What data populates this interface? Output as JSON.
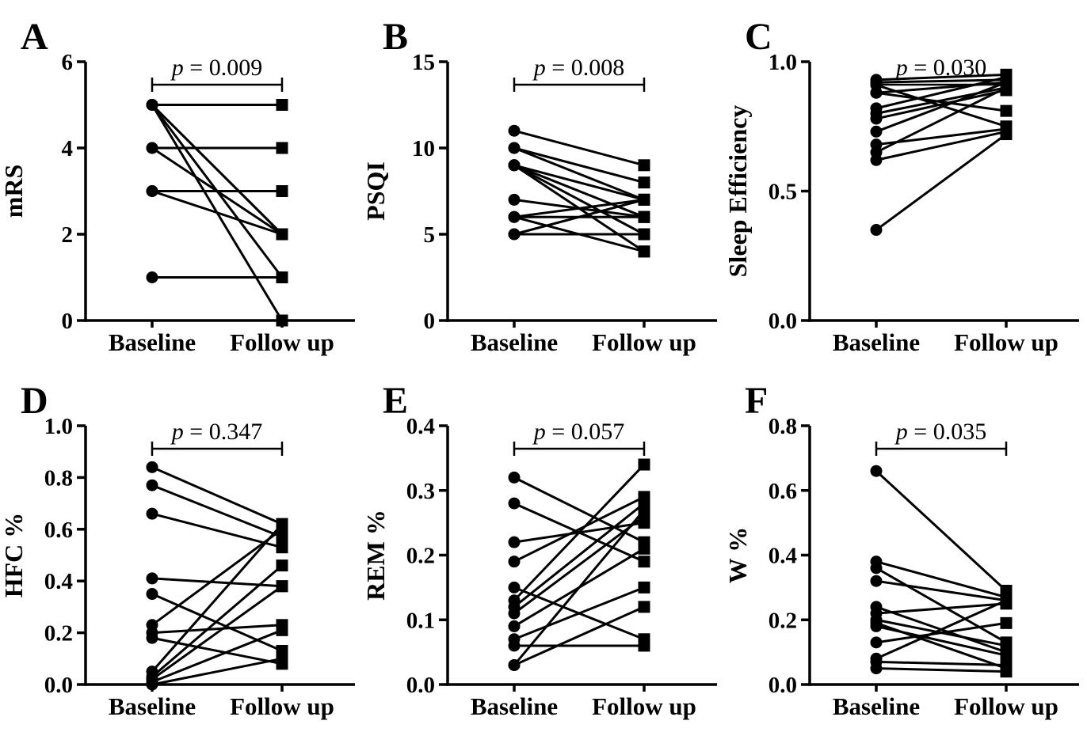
{
  "figure": {
    "background": "#ffffff",
    "ink": "#000000",
    "marker_legend": {
      "baseline_marker": "filled-circle",
      "followup_marker": "filled-square"
    }
  },
  "chart_data": [
    {
      "panel": "A",
      "type": "line",
      "subtype": "paired-before-after",
      "title": "",
      "ylabel": "mRS",
      "categories": [
        "Baseline",
        "Follow up"
      ],
      "ylim": [
        0,
        6
      ],
      "yticks": [
        0,
        2,
        4,
        6
      ],
      "ytick_labels": [
        "0",
        "2",
        "4",
        "6"
      ],
      "p_label": "p = 0.009",
      "grid": "off",
      "pairs": [
        [
          5,
          5
        ],
        [
          5,
          2
        ],
        [
          5,
          2
        ],
        [
          5,
          1
        ],
        [
          5,
          0
        ],
        [
          4,
          4
        ],
        [
          4,
          2
        ],
        [
          3,
          3
        ],
        [
          3,
          2
        ],
        [
          1,
          1
        ]
      ]
    },
    {
      "panel": "B",
      "type": "line",
      "subtype": "paired-before-after",
      "title": "",
      "ylabel": "PSQI",
      "categories": [
        "Baseline",
        "Follow up"
      ],
      "ylim": [
        0,
        15
      ],
      "yticks": [
        0,
        5,
        10,
        15
      ],
      "ytick_labels": [
        "0",
        "5",
        "10",
        "15"
      ],
      "p_label": "p = 0.008",
      "grid": "off",
      "pairs": [
        [
          11,
          9
        ],
        [
          10,
          8
        ],
        [
          10,
          7
        ],
        [
          9,
          7
        ],
        [
          9,
          6
        ],
        [
          9,
          5
        ],
        [
          9,
          4
        ],
        [
          7,
          6
        ],
        [
          6,
          7
        ],
        [
          6,
          6
        ],
        [
          6,
          4
        ],
        [
          5,
          7
        ],
        [
          5,
          5
        ]
      ]
    },
    {
      "panel": "C",
      "type": "line",
      "subtype": "paired-before-after",
      "title": "",
      "ylabel": "Sleep Efficiency",
      "categories": [
        "Baseline",
        "Follow up"
      ],
      "ylim": [
        0,
        1
      ],
      "yticks": [
        0,
        0.5,
        1
      ],
      "ytick_labels": [
        "0.0",
        "0.5",
        "1.0"
      ],
      "p_label": "p = 0.030",
      "grid": "off",
      "pairs": [
        [
          0.93,
          0.95
        ],
        [
          0.92,
          0.93
        ],
        [
          0.91,
          0.75
        ],
        [
          0.88,
          0.81
        ],
        [
          0.88,
          0.92
        ],
        [
          0.82,
          0.94
        ],
        [
          0.8,
          0.9
        ],
        [
          0.78,
          0.89
        ],
        [
          0.73,
          0.92
        ],
        [
          0.68,
          0.74
        ],
        [
          0.65,
          0.9
        ],
        [
          0.62,
          0.73
        ],
        [
          0.35,
          0.72
        ]
      ]
    },
    {
      "panel": "D",
      "type": "line",
      "subtype": "paired-before-after",
      "title": "",
      "ylabel": "HFC %",
      "categories": [
        "Baseline",
        "Follow up"
      ],
      "ylim": [
        0,
        1
      ],
      "yticks": [
        0,
        0.2,
        0.4,
        0.6,
        0.8,
        1
      ],
      "ytick_labels": [
        "0.0",
        "0.2",
        "0.4",
        "0.6",
        "0.8",
        "1.0"
      ],
      "p_label": "p = 0.347",
      "grid": "off",
      "pairs": [
        [
          0.84,
          0.62
        ],
        [
          0.77,
          0.57
        ],
        [
          0.66,
          0.53
        ],
        [
          0.41,
          0.38
        ],
        [
          0.35,
          0.13
        ],
        [
          0.23,
          0.6
        ],
        [
          0.2,
          0.23
        ],
        [
          0.18,
          0.08
        ],
        [
          0.05,
          0.62
        ],
        [
          0.03,
          0.46
        ],
        [
          0.02,
          0.38
        ],
        [
          0.01,
          0.21
        ],
        [
          0.0,
          0.1
        ]
      ]
    },
    {
      "panel": "E",
      "type": "line",
      "subtype": "paired-before-after",
      "title": "",
      "ylabel": "REM %",
      "categories": [
        "Baseline",
        "Follow up"
      ],
      "ylim": [
        0,
        0.4
      ],
      "yticks": [
        0,
        0.1,
        0.2,
        0.3,
        0.4
      ],
      "ytick_labels": [
        "0.0",
        "0.1",
        "0.2",
        "0.3",
        "0.4"
      ],
      "p_label": "p = 0.057",
      "grid": "off",
      "pairs": [
        [
          0.32,
          0.22
        ],
        [
          0.28,
          0.19
        ],
        [
          0.22,
          0.25
        ],
        [
          0.19,
          0.29
        ],
        [
          0.15,
          0.07
        ],
        [
          0.13,
          0.34
        ],
        [
          0.12,
          0.28
        ],
        [
          0.11,
          0.26
        ],
        [
          0.09,
          0.21
        ],
        [
          0.07,
          0.15
        ],
        [
          0.06,
          0.06
        ],
        [
          0.03,
          0.27
        ],
        [
          0.03,
          0.12
        ]
      ]
    },
    {
      "panel": "F",
      "type": "line",
      "subtype": "paired-before-after",
      "title": "",
      "ylabel": "W %",
      "categories": [
        "Baseline",
        "Follow up"
      ],
      "ylim": [
        0,
        0.8
      ],
      "yticks": [
        0,
        0.2,
        0.4,
        0.6,
        0.8
      ],
      "ytick_labels": [
        "0.0",
        "0.2",
        "0.4",
        "0.6",
        "0.8"
      ],
      "p_label": "p = 0.035",
      "grid": "off",
      "pairs": [
        [
          0.66,
          0.29
        ],
        [
          0.38,
          0.27
        ],
        [
          0.36,
          0.13
        ],
        [
          0.32,
          0.26
        ],
        [
          0.24,
          0.1
        ],
        [
          0.22,
          0.25
        ],
        [
          0.2,
          0.12
        ],
        [
          0.19,
          0.05
        ],
        [
          0.18,
          0.09
        ],
        [
          0.13,
          0.19
        ],
        [
          0.08,
          0.26
        ],
        [
          0.07,
          0.06
        ],
        [
          0.05,
          0.04
        ]
      ]
    }
  ]
}
